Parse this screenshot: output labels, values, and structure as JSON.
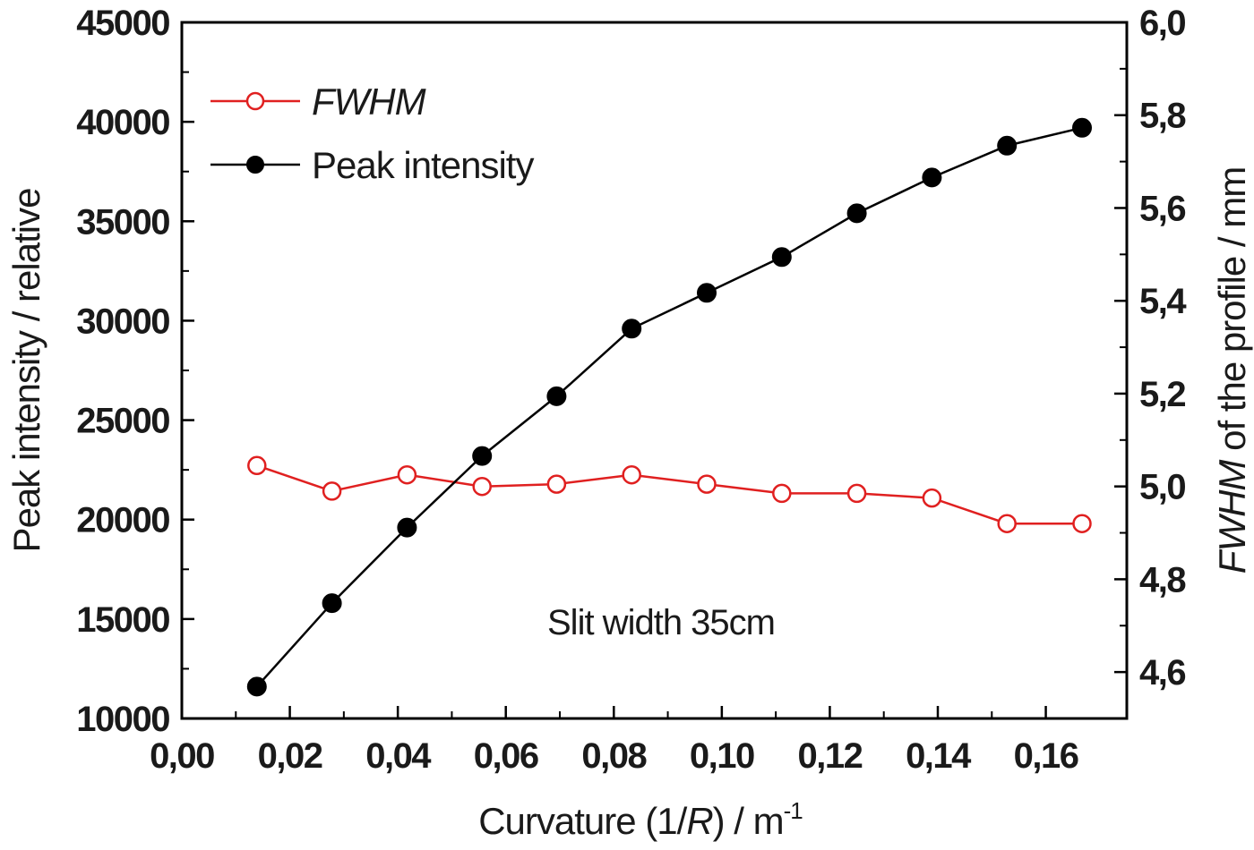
{
  "chart_data": {
    "type": "line",
    "x": [
      0.0139,
      0.0278,
      0.0417,
      0.0556,
      0.0694,
      0.0833,
      0.0972,
      0.1111,
      0.125,
      0.1389,
      0.1528,
      0.1667
    ],
    "series": [
      {
        "name": "FWHM",
        "axis": "right",
        "marker": "open-circle",
        "color": "#e02020",
        "values": [
          5.045,
          4.99,
          5.025,
          5.0,
          5.005,
          5.025,
          5.005,
          4.985,
          4.985,
          4.975,
          4.92,
          4.92
        ]
      },
      {
        "name": "Peak intensity",
        "axis": "left",
        "marker": "filled-circle",
        "color": "#000000",
        "values": [
          11600,
          15800,
          19600,
          23200,
          26200,
          29600,
          31400,
          33200,
          35400,
          37200,
          38800,
          39700
        ]
      }
    ],
    "xlim": [
      0.0,
      0.175
    ],
    "ylim_left": [
      10000,
      45000
    ],
    "ylim_right": [
      4.5,
      6.0
    ],
    "x_ticks": [
      "0,00",
      "0,02",
      "0,04",
      "0,06",
      "0,08",
      "0,10",
      "0,12",
      "0,14",
      "0,16"
    ],
    "y_left_ticks": [
      "10000",
      "15000",
      "20000",
      "25000",
      "30000",
      "35000",
      "40000",
      "45000"
    ],
    "y_right_ticks": [
      "4,6",
      "4,8",
      "5,0",
      "5,2",
      "5,4",
      "5,6",
      "5,8",
      "6,0"
    ],
    "xlabel": {
      "pre": "Curvature (1/",
      "ital": "R",
      "post": ") / m",
      "sup": "-1"
    },
    "ylabel_left": "Peak intensity / relative",
    "ylabel_right": {
      "ital": "FWHM",
      "post": " of the profile / mm"
    },
    "annotation": "Slit width 35cm",
    "legend": [
      "FWHM",
      "Peak intensity"
    ],
    "grid": false
  }
}
